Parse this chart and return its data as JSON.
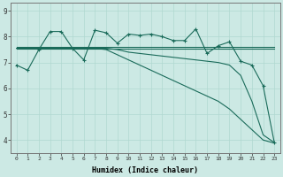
{
  "xlabel": "Humidex (Indice chaleur)",
  "background_color": "#cce9e4",
  "grid_color": "#b0d8d0",
  "line_color": "#1a6b5a",
  "x_ticks": [
    0,
    1,
    2,
    3,
    4,
    5,
    6,
    7,
    8,
    9,
    10,
    11,
    12,
    13,
    14,
    15,
    16,
    17,
    18,
    19,
    20,
    21,
    22,
    23
  ],
  "y_ticks": [
    4,
    5,
    6,
    7,
    8,
    9
  ],
  "ylim": [
    3.5,
    9.3
  ],
  "xlim": [
    -0.5,
    23.5
  ],
  "series1": [
    6.9,
    6.7,
    7.5,
    8.2,
    8.2,
    7.55,
    7.1,
    8.25,
    8.15,
    7.75,
    8.1,
    8.05,
    8.1,
    8.0,
    7.85,
    7.85,
    8.3,
    7.35,
    7.65,
    7.8,
    7.05,
    6.9,
    6.1,
    3.9
  ],
  "series2": [
    7.6,
    7.6,
    7.6,
    7.6,
    7.6,
    7.6,
    7.6,
    7.6,
    7.6,
    7.6,
    7.6,
    7.6,
    7.6,
    7.6,
    7.6,
    7.6,
    7.6,
    7.6,
    7.6,
    7.6,
    7.6,
    7.6,
    7.6,
    7.6
  ],
  "series3": [
    7.55,
    7.55,
    7.55,
    7.55,
    7.55,
    7.55,
    7.55,
    7.55,
    7.55,
    7.55,
    7.55,
    7.55,
    7.55,
    7.55,
    7.55,
    7.55,
    7.55,
    7.55,
    7.55,
    7.55,
    7.55,
    7.55,
    7.55,
    7.55
  ],
  "series4": [
    7.55,
    7.55,
    7.55,
    7.55,
    7.55,
    7.55,
    7.55,
    7.55,
    7.55,
    7.5,
    7.4,
    7.35,
    7.3,
    7.25,
    7.2,
    7.15,
    7.1,
    7.05,
    7.0,
    6.9,
    6.5,
    5.5,
    4.2,
    3.9
  ],
  "series5": [
    7.55,
    7.55,
    7.55,
    7.55,
    7.55,
    7.55,
    7.55,
    7.55,
    7.5,
    7.3,
    7.1,
    6.9,
    6.7,
    6.5,
    6.3,
    6.1,
    5.9,
    5.7,
    5.5,
    5.2,
    4.8,
    4.4,
    4.0,
    3.88
  ]
}
